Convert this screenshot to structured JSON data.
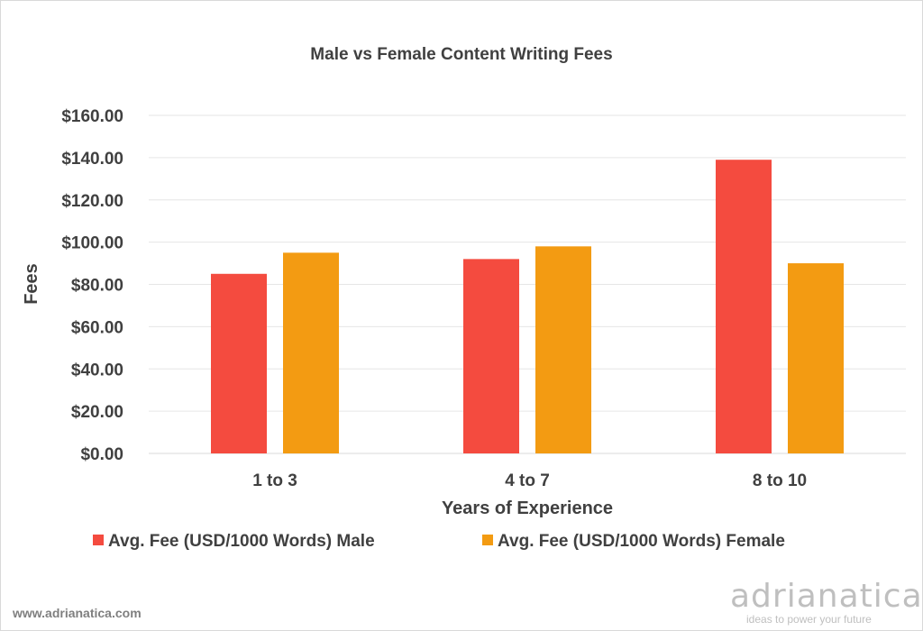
{
  "chart_data": {
    "type": "bar",
    "title": "Male vs Female Content Writing Fees",
    "xlabel": "Years of Experience",
    "ylabel": "Fees",
    "categories": [
      "1 to 3",
      "4 to 7",
      "8 to 10"
    ],
    "series": [
      {
        "name": "Avg. Fee (USD/1000 Words) Male",
        "color": "#f44b3f",
        "values": [
          85,
          92,
          139
        ]
      },
      {
        "name": "Avg. Fee (USD/1000 Words) Female",
        "color": "#f39b12",
        "values": [
          95,
          98,
          90
        ]
      }
    ],
    "ylim": [
      0,
      160
    ],
    "yticks": [
      "$0.00",
      "$20.00",
      "$40.00",
      "$60.00",
      "$80.00",
      "$100.00",
      "$120.00",
      "$140.00",
      "$160.00"
    ],
    "grid": true,
    "legend": "bottom"
  },
  "footer": {
    "url": "www.adrianatica.com",
    "brand": "adrianatica",
    "tagline": "ideas to power your future"
  }
}
